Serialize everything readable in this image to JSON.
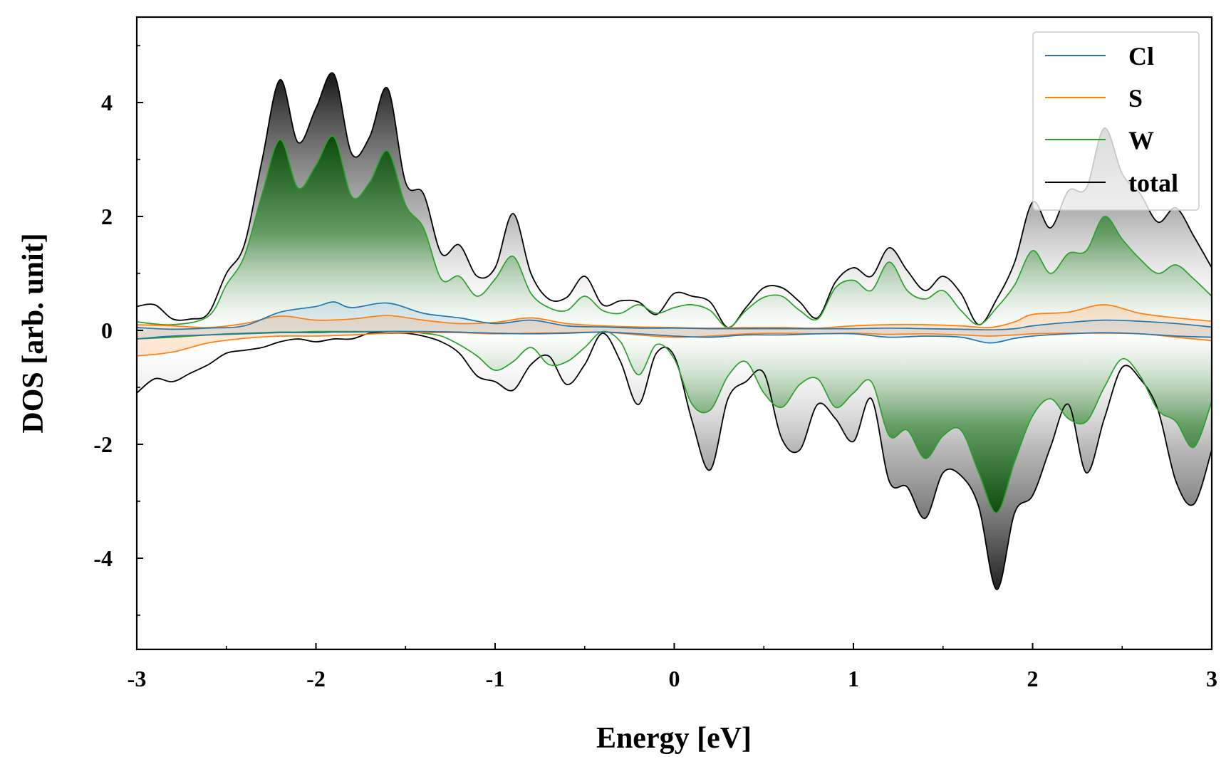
{
  "chart_data": {
    "type": "area",
    "title": "",
    "xlabel": "Energy [eV]",
    "ylabel": "DOS [arb. unit]",
    "xlim": [
      -3,
      3
    ],
    "ylim": [
      -5.6,
      5.5
    ],
    "xticks": [
      -3,
      -2,
      -1,
      0,
      1,
      2,
      3
    ],
    "xtick_labels": [
      "-3",
      "-2",
      "-1",
      "0",
      "1",
      "2",
      "3"
    ],
    "yticks": [
      -4,
      -2,
      0,
      2,
      4
    ],
    "ytick_labels": [
      "-4",
      "-2",
      "0",
      "2",
      "4"
    ],
    "legend": {
      "position": "top-right"
    },
    "series": [
      {
        "name": "Cl",
        "color": "#1f77b4",
        "x": [
          -3,
          -2.8,
          -2.6,
          -2.4,
          -2.2,
          -2.0,
          -1.9,
          -1.8,
          -1.6,
          -1.4,
          -1.2,
          -1.0,
          -0.8,
          -0.6,
          -0.4,
          -0.2,
          0.0,
          0.2,
          0.4,
          0.6,
          0.8,
          1.0,
          1.2,
          1.4,
          1.6,
          1.76,
          1.9,
          2.0,
          2.2,
          2.4,
          2.6,
          2.8,
          3.0
        ],
        "up": [
          0.05,
          0.02,
          0.04,
          0.08,
          0.32,
          0.42,
          0.5,
          0.4,
          0.48,
          0.3,
          0.22,
          0.12,
          0.18,
          0.08,
          0.06,
          0.04,
          0.04,
          0.03,
          0.03,
          0.03,
          0.03,
          0.03,
          0.04,
          0.03,
          0.02,
          0.01,
          0.03,
          0.08,
          0.14,
          0.18,
          0.16,
          0.12,
          0.06
        ],
        "down": [
          -0.15,
          -0.1,
          -0.08,
          -0.06,
          -0.04,
          -0.04,
          -0.03,
          -0.03,
          -0.02,
          -0.02,
          -0.03,
          -0.05,
          -0.06,
          -0.05,
          -0.03,
          -0.06,
          -0.1,
          -0.12,
          -0.08,
          -0.08,
          -0.06,
          -0.06,
          -0.12,
          -0.1,
          -0.12,
          -0.22,
          -0.14,
          -0.1,
          -0.06,
          -0.04,
          -0.06,
          -0.1,
          -0.12
        ]
      },
      {
        "name": "S",
        "color": "#ff7f0e",
        "x": [
          -3,
          -2.8,
          -2.6,
          -2.4,
          -2.2,
          -2.0,
          -1.8,
          -1.6,
          -1.4,
          -1.2,
          -1.0,
          -0.8,
          -0.6,
          -0.4,
          -0.2,
          0.0,
          0.2,
          0.4,
          0.6,
          0.8,
          1.0,
          1.2,
          1.4,
          1.6,
          1.76,
          1.9,
          2.0,
          2.2,
          2.4,
          2.6,
          2.8,
          3.0
        ],
        "up": [
          0.1,
          0.08,
          0.05,
          0.12,
          0.25,
          0.18,
          0.2,
          0.26,
          0.18,
          0.12,
          0.14,
          0.22,
          0.12,
          0.08,
          0.06,
          0.05,
          0.04,
          0.05,
          0.05,
          0.04,
          0.08,
          0.1,
          0.1,
          0.08,
          0.05,
          0.15,
          0.28,
          0.32,
          0.45,
          0.3,
          0.22,
          0.16
        ],
        "down": [
          -0.45,
          -0.38,
          -0.22,
          -0.14,
          -0.1,
          -0.1,
          -0.08,
          -0.05,
          -0.04,
          -0.04,
          -0.06,
          -0.05,
          -0.04,
          -0.03,
          -0.08,
          -0.12,
          -0.1,
          -0.06,
          -0.05,
          -0.06,
          -0.05,
          -0.07,
          -0.06,
          -0.08,
          -0.1,
          -0.08,
          -0.06,
          -0.05,
          -0.05,
          -0.06,
          -0.12,
          -0.18
        ]
      },
      {
        "name": "W",
        "color": "#2ca02c",
        "x": [
          -3,
          -2.8,
          -2.6,
          -2.5,
          -2.4,
          -2.3,
          -2.2,
          -2.1,
          -2.0,
          -1.9,
          -1.8,
          -1.7,
          -1.6,
          -1.5,
          -1.4,
          -1.3,
          -1.2,
          -1.1,
          -1.0,
          -0.9,
          -0.8,
          -0.7,
          -0.6,
          -0.5,
          -0.4,
          -0.3,
          -0.2,
          -0.1,
          0.0,
          0.1,
          0.2,
          0.3,
          0.4,
          0.5,
          0.6,
          0.7,
          0.8,
          0.9,
          1.0,
          1.1,
          1.2,
          1.3,
          1.4,
          1.5,
          1.6,
          1.7,
          1.8,
          1.9,
          2.0,
          2.1,
          2.2,
          2.3,
          2.4,
          2.5,
          2.6,
          2.7,
          2.8,
          2.9,
          3.0
        ],
        "up": [
          0.15,
          0.1,
          0.25,
          0.8,
          1.3,
          2.4,
          3.35,
          2.5,
          2.9,
          3.4,
          2.35,
          2.6,
          3.15,
          2.2,
          1.8,
          0.9,
          0.95,
          0.6,
          0.9,
          1.3,
          0.65,
          0.4,
          0.35,
          0.6,
          0.35,
          0.3,
          0.45,
          0.3,
          0.4,
          0.45,
          0.35,
          0.05,
          0.35,
          0.58,
          0.6,
          0.35,
          0.2,
          0.75,
          0.88,
          0.7,
          1.2,
          0.7,
          0.55,
          0.7,
          0.35,
          0.1,
          0.4,
          0.8,
          1.4,
          1.0,
          1.35,
          1.4,
          2.0,
          1.6,
          1.25,
          1.0,
          1.15,
          0.9,
          0.6
        ],
        "down": [
          -0.15,
          -0.12,
          -0.08,
          -0.06,
          -0.05,
          -0.04,
          -0.03,
          -0.03,
          -0.02,
          -0.02,
          -0.02,
          -0.02,
          -0.02,
          -0.02,
          -0.05,
          -0.1,
          -0.25,
          -0.45,
          -0.7,
          -0.55,
          -0.3,
          -0.6,
          -0.55,
          -0.3,
          -0.02,
          -0.2,
          -0.78,
          -0.25,
          -0.5,
          -1.3,
          -1.4,
          -0.8,
          -0.55,
          -1.1,
          -1.35,
          -0.95,
          -0.85,
          -1.35,
          -1.1,
          -0.9,
          -1.85,
          -1.75,
          -2.25,
          -1.85,
          -1.75,
          -2.5,
          -3.2,
          -2.3,
          -1.5,
          -1.2,
          -1.55,
          -1.6,
          -1.0,
          -0.5,
          -0.8,
          -1.4,
          -1.6,
          -2.05,
          -1.25
        ]
      },
      {
        "name": "total",
        "color": "#000000",
        "x": [
          -3,
          -2.9,
          -2.8,
          -2.7,
          -2.6,
          -2.5,
          -2.4,
          -2.3,
          -2.2,
          -2.1,
          -2.0,
          -1.9,
          -1.8,
          -1.7,
          -1.6,
          -1.5,
          -1.4,
          -1.3,
          -1.2,
          -1.1,
          -1.0,
          -0.9,
          -0.8,
          -0.7,
          -0.6,
          -0.5,
          -0.4,
          -0.3,
          -0.2,
          -0.1,
          0.0,
          0.1,
          0.2,
          0.3,
          0.4,
          0.5,
          0.6,
          0.7,
          0.8,
          0.9,
          1.0,
          1.1,
          1.2,
          1.3,
          1.4,
          1.5,
          1.6,
          1.7,
          1.8,
          1.9,
          2.0,
          2.1,
          2.2,
          2.3,
          2.4,
          2.5,
          2.6,
          2.7,
          2.8,
          2.9,
          3.0
        ],
        "up": [
          0.42,
          0.45,
          0.2,
          0.2,
          0.3,
          1.0,
          1.5,
          3.0,
          4.4,
          3.3,
          3.9,
          4.5,
          3.1,
          3.4,
          4.25,
          2.6,
          2.4,
          1.35,
          1.5,
          0.95,
          1.1,
          2.05,
          1.0,
          0.55,
          0.58,
          0.95,
          0.45,
          0.52,
          0.5,
          0.28,
          0.65,
          0.6,
          0.5,
          0.05,
          0.4,
          0.75,
          0.75,
          0.5,
          0.22,
          0.85,
          1.1,
          0.95,
          1.45,
          1.05,
          0.7,
          0.95,
          0.65,
          0.1,
          0.55,
          1.2,
          2.25,
          1.8,
          2.45,
          2.5,
          3.55,
          2.75,
          2.4,
          1.9,
          2.15,
          1.65,
          1.1
        ],
        "down": [
          -1.1,
          -0.85,
          -0.9,
          -0.75,
          -0.6,
          -0.4,
          -0.35,
          -0.3,
          -0.2,
          -0.15,
          -0.2,
          -0.15,
          -0.15,
          -0.05,
          -0.05,
          -0.05,
          -0.1,
          -0.2,
          -0.4,
          -0.8,
          -0.9,
          -1.05,
          -0.6,
          -0.45,
          -0.95,
          -0.6,
          -0.05,
          -0.55,
          -1.3,
          -0.4,
          -0.45,
          -1.6,
          -2.45,
          -1.2,
          -0.9,
          -0.75,
          -1.9,
          -2.1,
          -1.3,
          -1.55,
          -1.95,
          -1.2,
          -2.65,
          -2.75,
          -3.3,
          -2.5,
          -2.55,
          -3.1,
          -4.55,
          -3.2,
          -2.9,
          -2.05,
          -1.3,
          -2.5,
          -1.55,
          -0.65,
          -0.85,
          -1.4,
          -2.65,
          -3.05,
          -2.1
        ]
      }
    ]
  }
}
